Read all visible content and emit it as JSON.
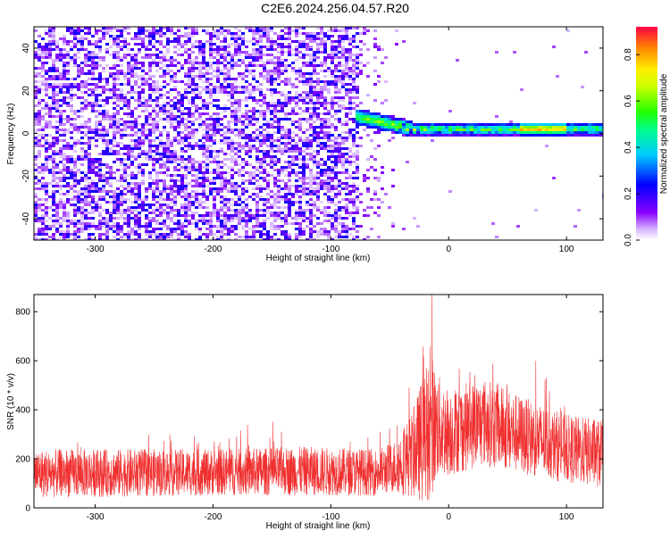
{
  "figure": {
    "title": "C2E6.2024.256.04.57.R20"
  },
  "chart_data": [
    {
      "type": "heatmap",
      "xlabel": "Height of straight line (km)",
      "ylabel": "Frequency (Hz)",
      "xlim": [
        -352,
        131
      ],
      "ylim": [
        -50,
        50
      ],
      "xticks": [
        -300,
        -200,
        -100,
        0,
        100
      ],
      "yticks": [
        -40,
        -20,
        0,
        20,
        40
      ],
      "grid": false,
      "noise_region_x": [
        -352,
        -75
      ],
      "signal_band_frequency_hz": 2,
      "colorbar": {
        "label": "Normalized spectral amplitude",
        "range": [
          0,
          0.92
        ],
        "ticks": [
          0.0,
          0.2,
          0.4,
          0.6,
          0.8
        ],
        "tick_labels": [
          "0.0",
          "0.2",
          "0.4",
          "0.6",
          "0.8"
        ],
        "colormap": "hsv-rainbow"
      }
    },
    {
      "type": "line",
      "xlabel": "Height of straight line (km)",
      "ylabel": "SNR (10 * v/v)",
      "xlim": [
        -352,
        131
      ],
      "ylim": [
        0,
        870
      ],
      "xticks": [
        -300,
        -200,
        -100,
        0,
        100
      ],
      "yticks": [
        0,
        200,
        400,
        600,
        800
      ],
      "grid": false,
      "series": [
        {
          "color": "#f03030",
          "envelope_x": [
            -352,
            -200,
            -120,
            -60,
            -45,
            -30,
            -20,
            -15,
            -10,
            0,
            30,
            60,
            100,
            131
          ],
          "envelope_mean": [
            140,
            145,
            150,
            145,
            170,
            220,
            300,
            340,
            330,
            310,
            350,
            300,
            240,
            220
          ],
          "envelope_amp": [
            100,
            95,
            100,
            95,
            110,
            180,
            280,
            300,
            220,
            180,
            180,
            160,
            140,
            140
          ]
        }
      ]
    }
  ]
}
